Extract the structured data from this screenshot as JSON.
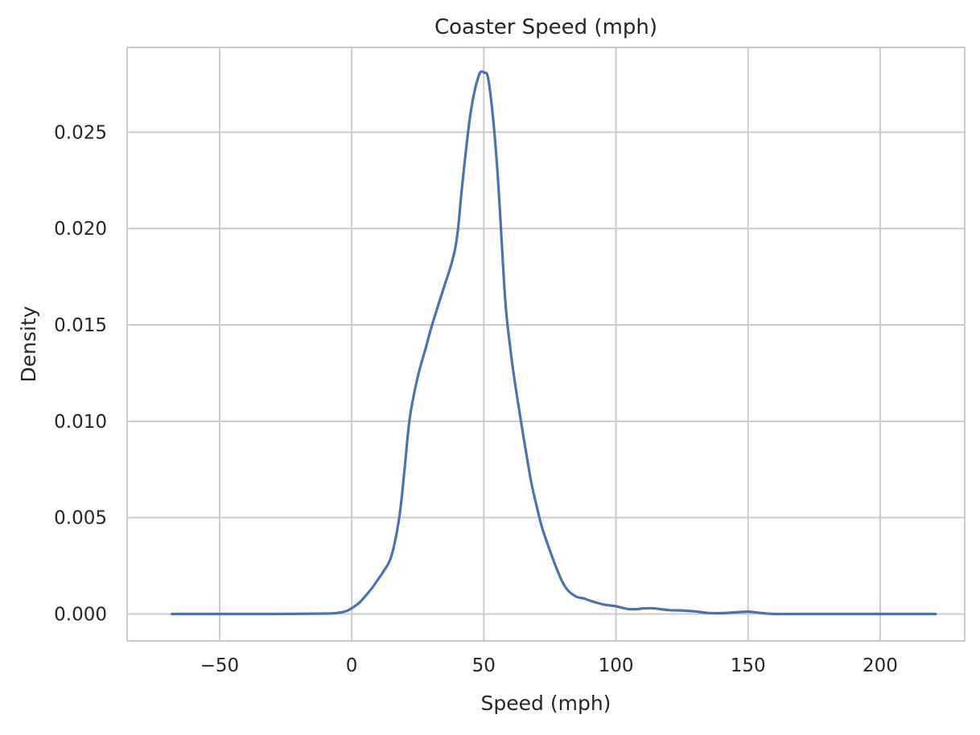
{
  "chart_data": {
    "type": "line",
    "title": "Coaster Speed (mph)",
    "xlabel": "Speed (mph)",
    "ylabel": "Density",
    "xlim": [
      -85,
      232
    ],
    "ylim": [
      -0.0014,
      0.0294
    ],
    "x_ticks": [
      -50,
      0,
      50,
      100,
      150,
      200
    ],
    "x_tick_labels": [
      "−50",
      "0",
      "50",
      "100",
      "150",
      "200"
    ],
    "y_ticks": [
      0.0,
      0.005,
      0.01,
      0.015,
      0.02,
      0.025
    ],
    "y_tick_labels": [
      "0.000",
      "0.005",
      "0.010",
      "0.015",
      "0.020",
      "0.025"
    ],
    "grid": true,
    "legend": "none",
    "series": [
      {
        "color": "#4c72b0",
        "x": [
          -68,
          -50,
          -30,
          -10,
          -5,
          -2,
          0,
          3,
          5,
          8,
          10,
          12,
          15,
          18,
          20,
          22,
          25,
          28,
          30,
          32,
          35,
          38,
          40,
          42,
          45,
          48,
          50,
          52,
          55,
          58,
          60,
          62,
          65,
          68,
          70,
          72,
          75,
          78,
          80,
          82,
          85,
          88,
          90,
          95,
          100,
          103,
          105,
          108,
          110,
          113,
          115,
          120,
          125,
          128,
          130,
          135,
          140,
          145,
          150,
          155,
          160,
          170,
          180,
          190,
          200,
          210,
          221
        ],
        "y": [
          0.0,
          0.0,
          0.0,
          2e-05,
          6e-05,
          0.00015,
          0.0003,
          0.0006,
          0.0009,
          0.0014,
          0.0018,
          0.0022,
          0.003,
          0.005,
          0.0075,
          0.0102,
          0.0123,
          0.0138,
          0.0148,
          0.0157,
          0.017,
          0.0183,
          0.0197,
          0.0225,
          0.026,
          0.0279,
          0.0281,
          0.0275,
          0.0233,
          0.0165,
          0.0138,
          0.0118,
          0.0092,
          0.0068,
          0.0056,
          0.0045,
          0.0033,
          0.0022,
          0.0016,
          0.0012,
          0.0009,
          0.0008,
          0.0007,
          0.0005,
          0.0004,
          0.0003,
          0.00025,
          0.00025,
          0.00028,
          0.0003,
          0.00028,
          0.0002,
          0.00018,
          0.00015,
          0.00013,
          5e-05,
          4e-05,
          8e-05,
          0.00012,
          5e-05,
          0.0,
          0.0,
          0.0,
          0.0,
          0.0,
          0.0,
          0.0
        ]
      }
    ]
  }
}
